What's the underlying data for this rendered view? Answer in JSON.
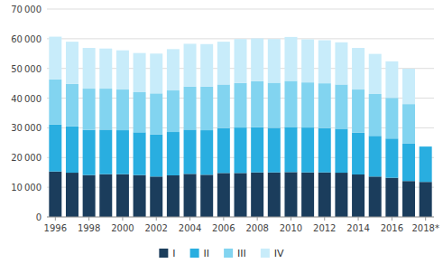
{
  "chart_data": {
    "type": "bar",
    "stacked": true,
    "grid": true,
    "legend": "bottom",
    "categories": [
      "1996",
      null,
      "1998",
      null,
      "2000",
      null,
      "2002",
      null,
      "2004",
      null,
      "2006",
      null,
      "2008",
      null,
      "2010",
      null,
      "2012",
      null,
      "2014",
      null,
      "2016",
      null,
      "2018*"
    ],
    "series": [
      {
        "name": "I",
        "color": "#1b3d5c",
        "values": [
          15300,
          14900,
          14100,
          14400,
          14400,
          14100,
          13600,
          14000,
          14500,
          14200,
          14800,
          14800,
          15000,
          15000,
          15100,
          15000,
          15000,
          14900,
          14300,
          13600,
          13200,
          12100,
          11800
        ]
      },
      {
        "name": "II",
        "color": "#29aee0",
        "values": [
          15800,
          15600,
          15200,
          15000,
          14800,
          14400,
          14200,
          14600,
          14900,
          15000,
          15100,
          15300,
          15200,
          15000,
          15200,
          15100,
          14900,
          14800,
          14100,
          13700,
          13200,
          12700,
          11900
        ]
      },
      {
        "name": "III",
        "color": "#82d4f0",
        "values": [
          15200,
          14300,
          13900,
          13800,
          13700,
          13500,
          13800,
          14000,
          14500,
          14700,
          14700,
          15000,
          15500,
          15200,
          15500,
          15200,
          15100,
          14900,
          14500,
          14100,
          13700,
          13200,
          0
        ]
      },
      {
        "name": "IV",
        "color": "#c8ecfa",
        "values": [
          14400,
          14200,
          13700,
          13500,
          13200,
          13200,
          13400,
          13900,
          14400,
          14300,
          14400,
          14800,
          14400,
          14700,
          14800,
          14500,
          14500,
          14200,
          14000,
          13500,
          12300,
          11900,
          0
        ]
      }
    ],
    "ylim": [
      0,
      70000
    ],
    "yticks": [
      0,
      {
        "value": 10000,
        "label": "10 000"
      },
      {
        "value": 20000,
        "label": "20 000"
      },
      {
        "value": 30000,
        "label": "30 000"
      },
      {
        "value": 40000,
        "label": "40 000"
      },
      {
        "value": 50000,
        "label": "50 000"
      },
      {
        "value": 60000,
        "label": "60 000"
      },
      {
        "value": 70000,
        "label": "70 000"
      }
    ]
  }
}
